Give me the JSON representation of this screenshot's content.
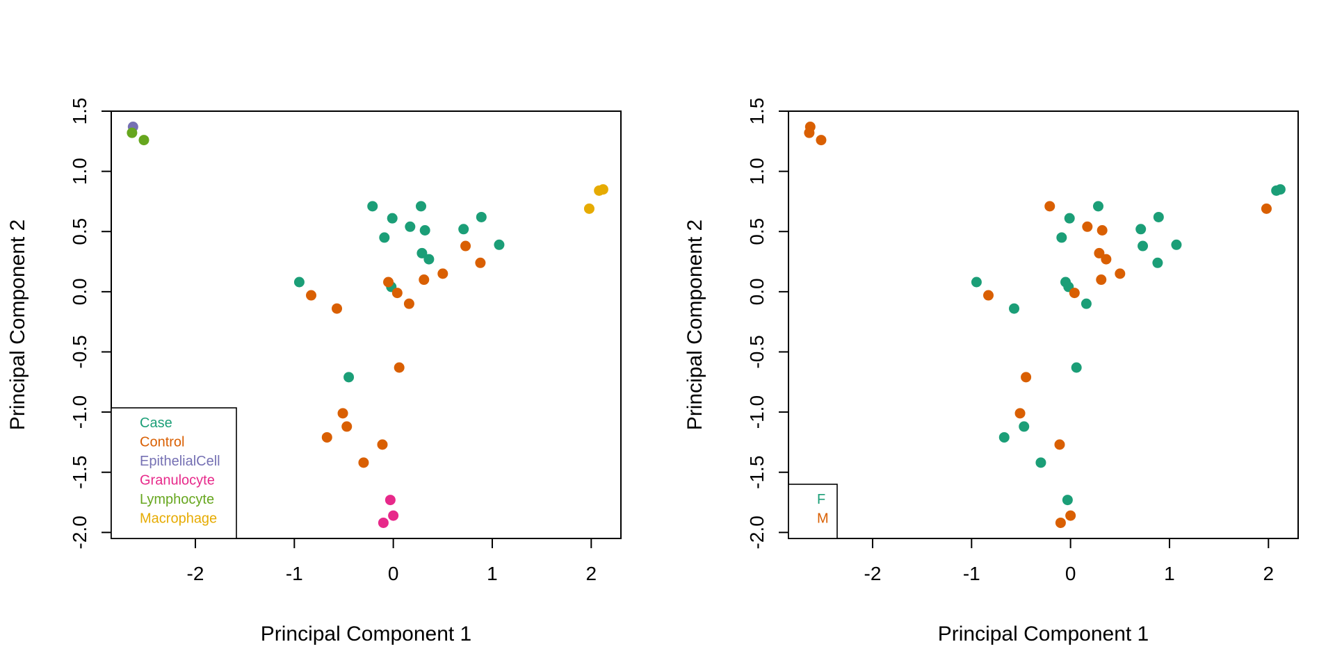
{
  "chart_data": [
    {
      "type": "scatter",
      "xlabel": "Principal Component 1",
      "ylabel": "Principal Component 2",
      "xlim": [
        -2.85,
        2.3
      ],
      "ylim": [
        -2.05,
        1.5
      ],
      "xticks": [
        -2,
        -1,
        0,
        1,
        2
      ],
      "yticks": [
        -2.0,
        -1.5,
        -1.0,
        -0.5,
        0.0,
        0.5,
        1.0,
        1.5
      ],
      "xtick_labels": [
        "-2",
        "-1",
        "0",
        "1",
        "2"
      ],
      "ytick_labels": [
        "-2.0",
        "-1.5",
        "-1.0",
        "-0.5",
        "0.0",
        "0.5",
        "1.0",
        "1.5"
      ],
      "legend_position": "bottom-left",
      "series": [
        {
          "name": "Case",
          "color": "#1B9E77",
          "points": [
            [
              -0.21,
              0.71
            ],
            [
              0.28,
              0.71
            ],
            [
              -0.01,
              0.61
            ],
            [
              0.89,
              0.62
            ],
            [
              0.17,
              0.54
            ],
            [
              0.32,
              0.51
            ],
            [
              -0.09,
              0.45
            ],
            [
              0.71,
              0.52
            ],
            [
              1.07,
              0.39
            ],
            [
              0.29,
              0.32
            ],
            [
              0.36,
              0.27
            ],
            [
              -0.95,
              0.08
            ],
            [
              -0.02,
              0.04
            ],
            [
              -0.45,
              -0.71
            ]
          ]
        },
        {
          "name": "Control",
          "color": "#D95F02",
          "points": [
            [
              0.73,
              0.38
            ],
            [
              0.88,
              0.24
            ],
            [
              0.5,
              0.15
            ],
            [
              0.31,
              0.1
            ],
            [
              -0.05,
              0.08
            ],
            [
              0.04,
              -0.01
            ],
            [
              0.16,
              -0.1
            ],
            [
              -0.83,
              -0.03
            ],
            [
              -0.57,
              -0.14
            ],
            [
              0.06,
              -0.63
            ],
            [
              -0.51,
              -1.01
            ],
            [
              -0.47,
              -1.12
            ],
            [
              -0.67,
              -1.21
            ],
            [
              -0.11,
              -1.27
            ],
            [
              -0.3,
              -1.42
            ]
          ]
        },
        {
          "name": "EpithelialCell",
          "color": "#7570B3",
          "points": [
            [
              -2.63,
              1.37
            ]
          ]
        },
        {
          "name": "Granulocyte",
          "color": "#E7298A",
          "points": [
            [
              -0.03,
              -1.73
            ],
            [
              0.0,
              -1.86
            ],
            [
              -0.1,
              -1.92
            ]
          ]
        },
        {
          "name": "Lymphocyte",
          "color": "#66A61E",
          "points": [
            [
              -2.64,
              1.32
            ],
            [
              -2.52,
              1.26
            ]
          ]
        },
        {
          "name": "Macrophage",
          "color": "#E6AB02",
          "points": [
            [
              1.98,
              0.69
            ],
            [
              2.08,
              0.84
            ],
            [
              2.12,
              0.85
            ]
          ]
        }
      ]
    },
    {
      "type": "scatter",
      "xlabel": "Principal Component 1",
      "ylabel": "Principal Component 2",
      "xlim": [
        -2.85,
        2.3
      ],
      "ylim": [
        -2.05,
        1.5
      ],
      "xticks": [
        -2,
        -1,
        0,
        1,
        2
      ],
      "yticks": [
        -2.0,
        -1.5,
        -1.0,
        -0.5,
        0.0,
        0.5,
        1.0,
        1.5
      ],
      "xtick_labels": [
        "-2",
        "-1",
        "0",
        "1",
        "2"
      ],
      "ytick_labels": [
        "-2.0",
        "-1.5",
        "-1.0",
        "-0.5",
        "0.0",
        "0.5",
        "1.0",
        "1.5"
      ],
      "legend_position": "bottom-left",
      "series": [
        {
          "name": "F",
          "color": "#1B9E77",
          "points": [
            [
              -0.01,
              0.61
            ],
            [
              0.28,
              0.71
            ],
            [
              0.89,
              0.62
            ],
            [
              -0.09,
              0.45
            ],
            [
              0.71,
              0.52
            ],
            [
              1.07,
              0.39
            ],
            [
              0.73,
              0.38
            ],
            [
              0.88,
              0.24
            ],
            [
              -0.95,
              0.08
            ],
            [
              -0.05,
              0.08
            ],
            [
              -0.02,
              0.04
            ],
            [
              0.16,
              -0.1
            ],
            [
              -0.57,
              -0.14
            ],
            [
              0.06,
              -0.63
            ],
            [
              -0.47,
              -1.12
            ],
            [
              -0.67,
              -1.21
            ],
            [
              -0.3,
              -1.42
            ],
            [
              -0.03,
              -1.73
            ],
            [
              2.08,
              0.84
            ],
            [
              2.12,
              0.85
            ]
          ]
        },
        {
          "name": "M",
          "color": "#D95F02",
          "points": [
            [
              -2.63,
              1.37
            ],
            [
              -2.64,
              1.32
            ],
            [
              -2.52,
              1.26
            ],
            [
              -0.21,
              0.71
            ],
            [
              0.17,
              0.54
            ],
            [
              0.32,
              0.51
            ],
            [
              0.29,
              0.32
            ],
            [
              0.36,
              0.27
            ],
            [
              0.5,
              0.15
            ],
            [
              0.31,
              0.1
            ],
            [
              0.04,
              -0.01
            ],
            [
              -0.83,
              -0.03
            ],
            [
              -0.45,
              -0.71
            ],
            [
              -0.51,
              -1.01
            ],
            [
              -0.11,
              -1.27
            ],
            [
              0.0,
              -1.86
            ],
            [
              -0.1,
              -1.92
            ],
            [
              1.98,
              0.69
            ]
          ]
        }
      ]
    }
  ]
}
